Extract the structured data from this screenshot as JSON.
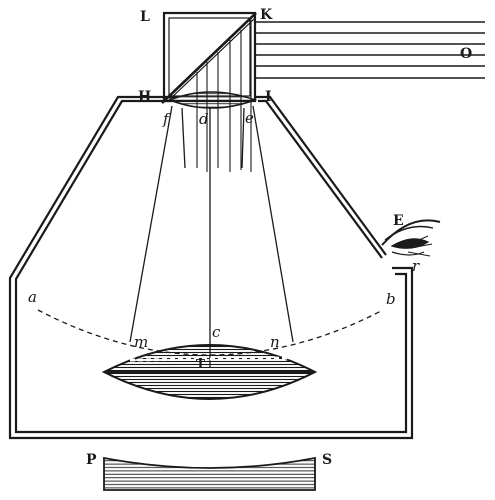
{
  "labels": {
    "L": "L",
    "K": "K",
    "O": "O",
    "H": "H",
    "I": "I",
    "f": "f",
    "d": "d",
    "e": "e",
    "E": "E",
    "a": "a",
    "b": "b",
    "m": "m",
    "c": "c",
    "n": "n",
    "T": "T",
    "P": "P",
    "S": "S",
    "r": "r"
  }
}
